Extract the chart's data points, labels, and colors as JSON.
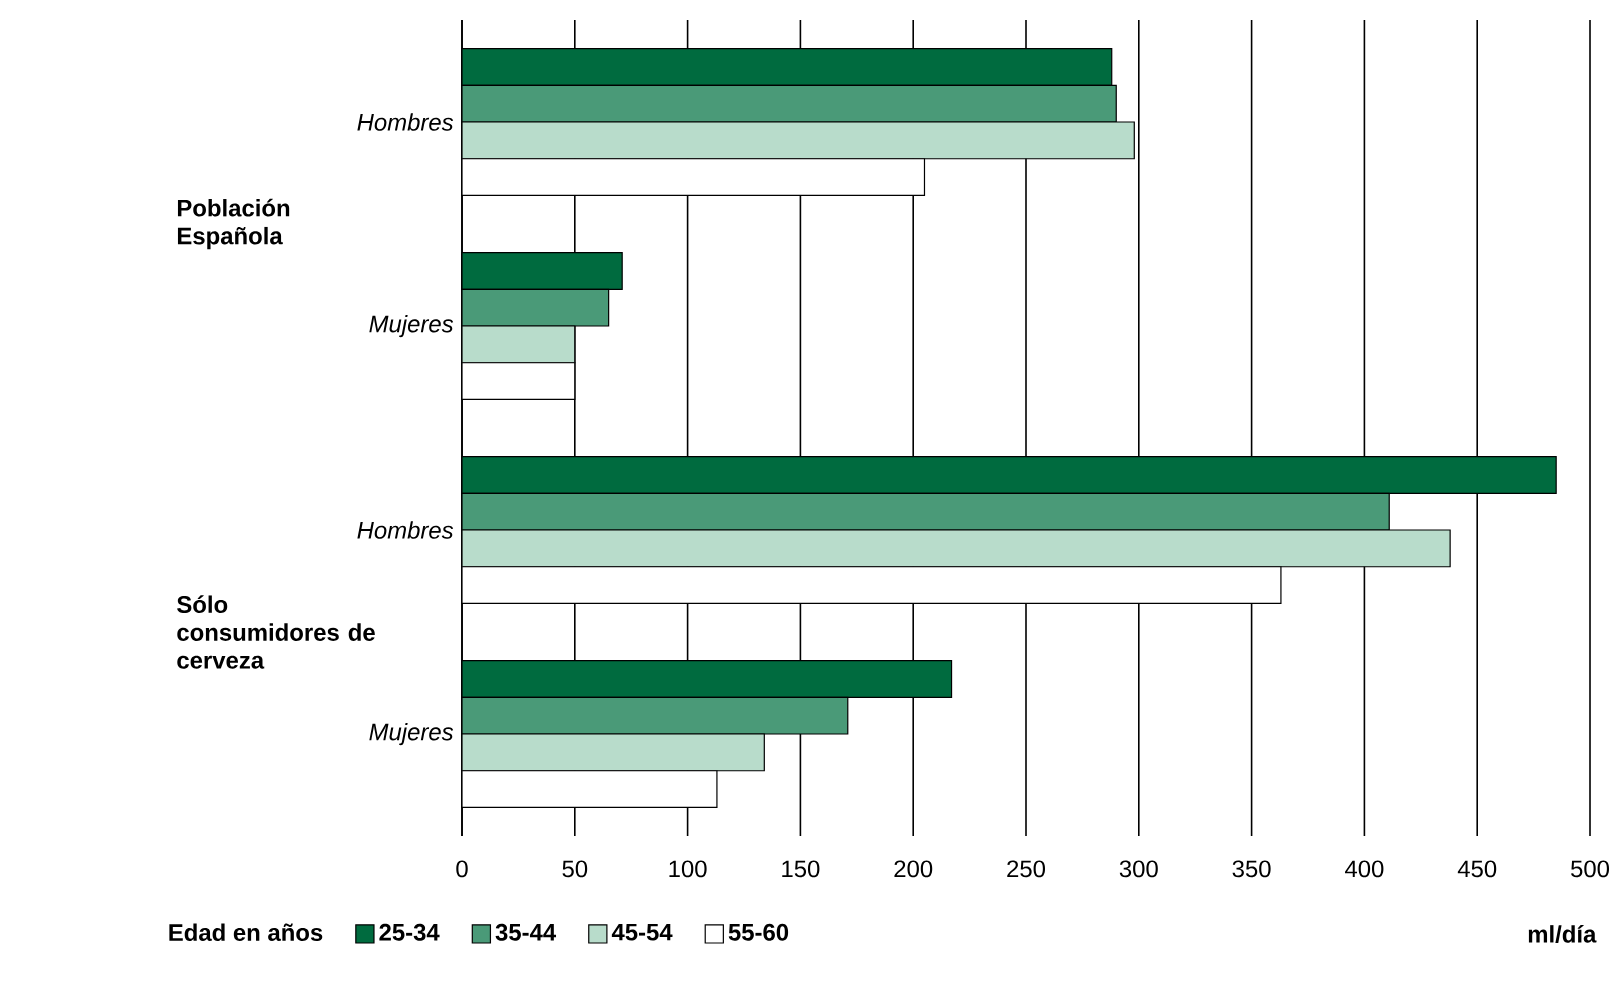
{
  "chart_data": {
    "type": "bar",
    "orientation": "horizontal",
    "categories": [
      "Hombres",
      "Mujeres",
      "Hombres",
      "Mujeres"
    ],
    "annotations": [
      "Población Española",
      "Sólo consumidores de cerveza"
    ],
    "legend_title": "Edad en años",
    "xlabel": "ml/día",
    "series": [
      {
        "name": "25-34",
        "color": "#006b3f",
        "values": [
          288,
          71,
          485,
          217
        ]
      },
      {
        "name": "35-44",
        "color": "#4a9a78",
        "values": [
          290,
          65,
          411,
          171
        ]
      },
      {
        "name": "45-54",
        "color": "#b8dccb",
        "values": [
          298,
          50,
          438,
          134
        ]
      },
      {
        "name": "55-60",
        "color": "#ffffff",
        "values": [
          205,
          50,
          363,
          113
        ]
      }
    ],
    "xlim": [
      0,
      500
    ],
    "xticks": [
      0,
      50,
      100,
      150,
      200,
      250,
      300,
      350,
      400,
      450,
      500
    ],
    "grid": "x",
    "legend": "bottom"
  }
}
